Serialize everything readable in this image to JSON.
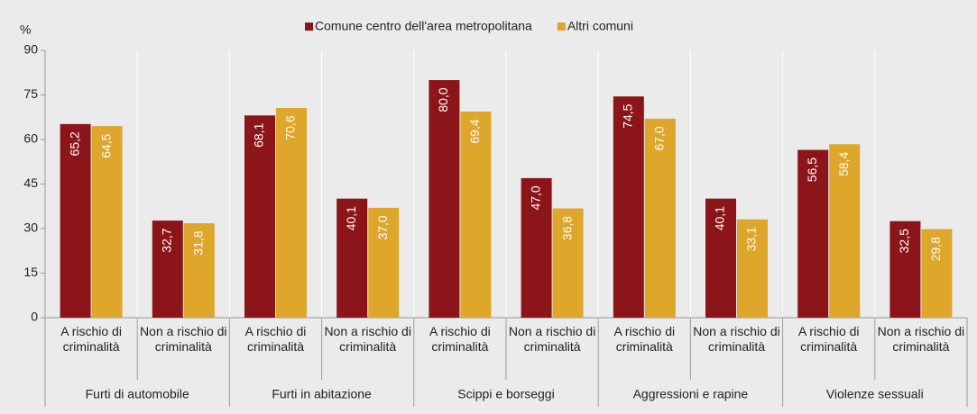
{
  "chart_data": {
    "type": "bar",
    "y_label": "%",
    "categories": [
      "A rischio di criminalità",
      "Non a rischio di criminalità",
      "A rischio di criminalità",
      "Non a rischio di criminalità",
      "A rischio di criminalità",
      "Non a rischio di criminalità",
      "A rischio di criminalità",
      "Non a rischio di criminalità",
      "A rischio di criminalità",
      "Non a rischio di criminalità"
    ],
    "groups": [
      "Furti di automobile",
      "Furti in abitazione",
      "Scippi e borseggi",
      "Aggressioni e rapine",
      "Violenze sessuali"
    ],
    "series": [
      {
        "name": "Comune centro dell'area metropolitana",
        "color": "#8b1519",
        "values": [
          65.2,
          32.7,
          68.1,
          40.1,
          80.0,
          47.0,
          74.5,
          40.1,
          56.5,
          32.5
        ],
        "value_labels": [
          "65,2",
          "32,7",
          "68,1",
          "40,1",
          "80,0",
          "47,0",
          "74,5",
          "40,1",
          "56,5",
          "32,5"
        ]
      },
      {
        "name": "Altri comuni",
        "color": "#dea62a",
        "values": [
          64.5,
          31.8,
          70.6,
          37.0,
          69.4,
          36.8,
          67.0,
          33.1,
          58.4,
          29.8
        ],
        "value_labels": [
          "64,5",
          "31,8",
          "70,6",
          "37,0",
          "69,4",
          "36,8",
          "67,0",
          "33,1",
          "58,4",
          "29,8"
        ]
      }
    ],
    "ylim": [
      0,
      90
    ],
    "yticks": [
      0,
      15,
      30,
      45,
      60,
      75,
      90
    ],
    "legend": "top"
  }
}
